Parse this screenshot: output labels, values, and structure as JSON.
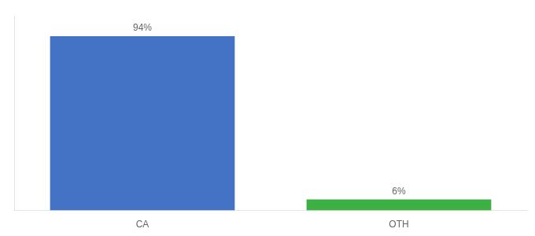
{
  "chart_data": {
    "type": "bar",
    "categories": [
      "CA",
      "OTH"
    ],
    "values": [
      94,
      6
    ],
    "value_labels": [
      "94%",
      "6%"
    ],
    "colors": [
      "#4472c4",
      "#3cb043"
    ],
    "ylim": [
      0,
      105
    ],
    "grid": false,
    "tick_labels": "x",
    "data_labels": true
  }
}
